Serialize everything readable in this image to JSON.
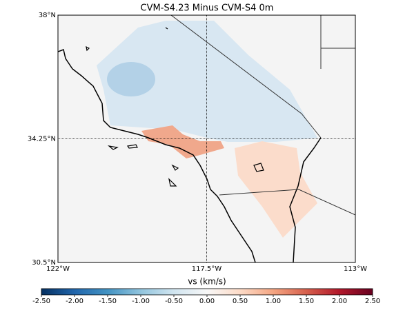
{
  "title": "CVM-S4.23 Minus CVM-S4 0m",
  "map": {
    "lonlim": [
      -122,
      -113
    ],
    "latlim": [
      30.5,
      38
    ],
    "lon_ticks": [
      {
        "value": -122,
        "label": "122°W"
      },
      {
        "value": -117.5,
        "label": "117.5°W"
      },
      {
        "value": -113,
        "label": "113°W"
      }
    ],
    "lat_ticks": [
      {
        "value": 30.5,
        "label": "30.5°N"
      },
      {
        "value": 34.25,
        "label": "34.25°N"
      },
      {
        "value": 38,
        "label": "38°N"
      }
    ]
  },
  "colorbar": {
    "label": "vs (km/s)",
    "lim": [
      -2.5,
      2.5
    ],
    "ticks": [
      {
        "value": -2.5,
        "label": "-2.50"
      },
      {
        "value": -2,
        "label": "-2.00"
      },
      {
        "value": -1.5,
        "label": "-1.50"
      },
      {
        "value": -1,
        "label": "-1.00"
      },
      {
        "value": -0.5,
        "label": "-0.50"
      },
      {
        "value": 0,
        "label": "0.00"
      },
      {
        "value": 0.5,
        "label": "0.50"
      },
      {
        "value": 1,
        "label": "1.00"
      },
      {
        "value": 1.5,
        "label": "1.50"
      },
      {
        "value": 2,
        "label": "2.00"
      },
      {
        "value": 2.5,
        "label": "2.50"
      }
    ]
  }
}
